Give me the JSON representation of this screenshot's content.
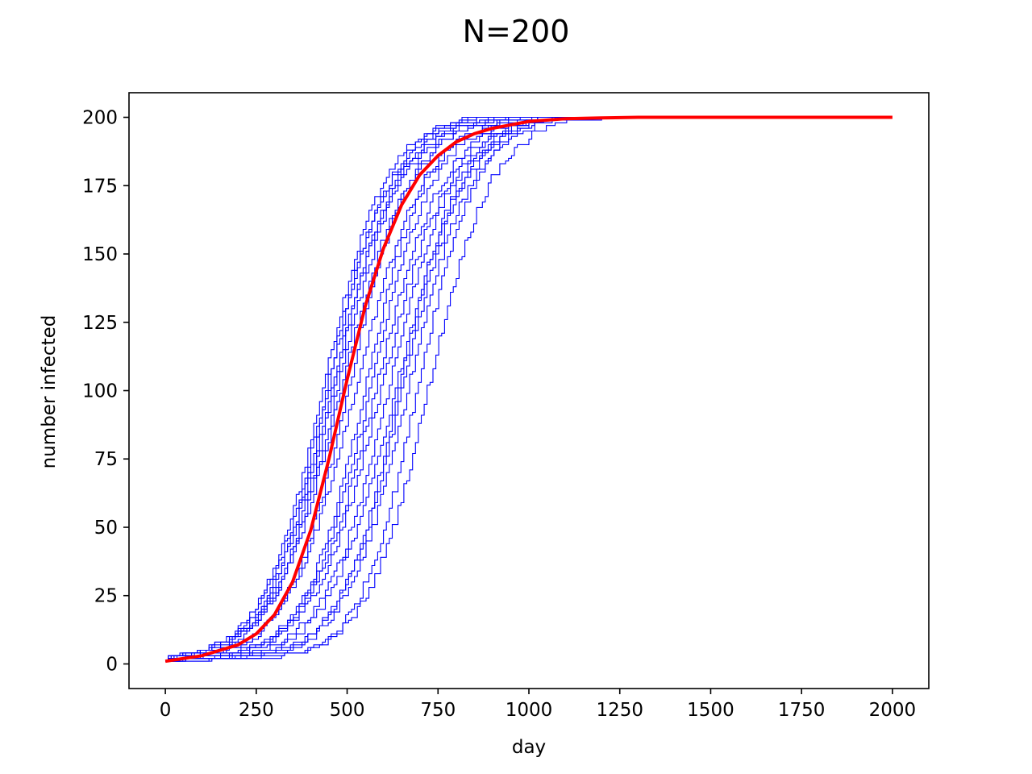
{
  "chart_data": {
    "type": "line",
    "title": "N=200",
    "xlabel": "day",
    "ylabel": "number infected",
    "xlim": [
      -100,
      2100
    ],
    "ylim": [
      -9,
      209
    ],
    "xticks": [
      0,
      250,
      500,
      750,
      1000,
      1250,
      1500,
      1750,
      2000
    ],
    "yticks": [
      0,
      25,
      50,
      75,
      100,
      125,
      150,
      175,
      200
    ],
    "grid": false,
    "legend": "none",
    "colors": {
      "simulations": "#0000ff",
      "mean": "#ff0000"
    },
    "simulation_runs": {
      "count": 20,
      "description_of_lines": "thin blue stochastic step trajectories",
      "midpoint_days": [
        430,
        440,
        445,
        455,
        460,
        470,
        480,
        500,
        520,
        545,
        560,
        575,
        590,
        610,
        630,
        640,
        650,
        665,
        690,
        720
      ],
      "end_days": [
        890,
        950,
        980,
        1000,
        1020,
        1050,
        1080,
        1100,
        1150,
        1200,
        1250,
        1300,
        1350,
        1400,
        1450,
        1500,
        1550,
        1600,
        1630,
        1650
      ]
    },
    "series": [
      {
        "name": "",
        "style": "thick red smooth curve",
        "x": [
          0,
          100,
          200,
          250,
          300,
          350,
          400,
          450,
          500,
          550,
          600,
          650,
          700,
          750,
          800,
          850,
          900,
          1000,
          1100,
          1200,
          1300,
          1500,
          2000
        ],
        "y": [
          1,
          3,
          7,
          11,
          18,
          30,
          49,
          75,
          104,
          131,
          152,
          168,
          179,
          186,
          191,
          194,
          196,
          198.5,
          199.5,
          199.8,
          200,
          200,
          200
        ]
      }
    ]
  }
}
